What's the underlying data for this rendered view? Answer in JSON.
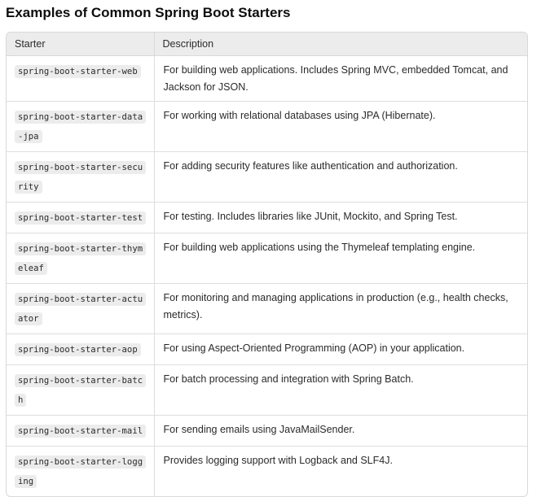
{
  "heading": "Examples of Common Spring Boot Starters",
  "table": {
    "headers": [
      "Starter",
      "Description"
    ],
    "rows": [
      {
        "starter": "spring-boot-starter-web",
        "description": "For building web applications. Includes Spring MVC, embedded Tomcat, and Jackson for JSON."
      },
      {
        "starter": "spring-boot-starter-data-jpa",
        "description": "For working with relational databases using JPA (Hibernate)."
      },
      {
        "starter": "spring-boot-starter-security",
        "description": "For adding security features like authentication and authorization."
      },
      {
        "starter": "spring-boot-starter-test",
        "description": "For testing. Includes libraries like JUnit, Mockito, and Spring Test."
      },
      {
        "starter": "spring-boot-starter-thymeleaf",
        "description": "For building web applications using the Thymeleaf templating engine."
      },
      {
        "starter": "spring-boot-starter-actuator",
        "description": "For monitoring and managing applications in production (e.g., health checks, metrics)."
      },
      {
        "starter": "spring-boot-starter-aop",
        "description": "For using Aspect-Oriented Programming (AOP) in your application."
      },
      {
        "starter": "spring-boot-starter-batch",
        "description": "For batch processing and integration with Spring Batch."
      },
      {
        "starter": "spring-boot-starter-mail",
        "description": "For sending emails using JavaMailSender."
      },
      {
        "starter": "spring-boot-starter-logging",
        "description": "Provides logging support with Logback and SLF4J."
      }
    ]
  }
}
